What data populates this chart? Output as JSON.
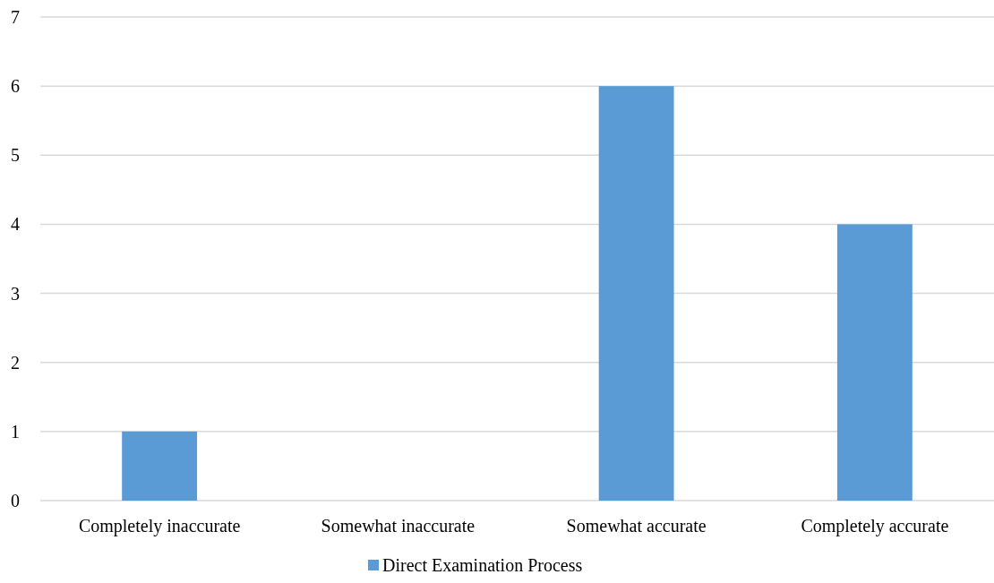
{
  "chart_data": {
    "type": "bar",
    "categories": [
      "Completely inaccurate",
      "Somewhat inaccurate",
      "Somewhat accurate",
      "Completely accurate"
    ],
    "series": [
      {
        "name": "Direct Examination Process",
        "color": "#5b9bd5",
        "values": [
          1,
          0,
          6,
          4
        ]
      }
    ],
    "ylim": [
      0,
      7
    ],
    "yticks": [
      0,
      1,
      2,
      3,
      4,
      5,
      6,
      7
    ],
    "grid": true,
    "legend": "bottom"
  }
}
